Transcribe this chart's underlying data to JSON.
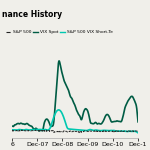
{
  "title": "nance History",
  "background_color": "#f0efea",
  "plot_bg_color": "#f0efea",
  "legend": [
    "S&P 500",
    "VIX Spot",
    "S&P 500 VIX Short-Te"
  ],
  "x_ticks": [
    "6",
    "Dec-07",
    "Dec-08",
    "Dec-09",
    "Dec-10",
    "Dec-1"
  ],
  "x_tick_fontsize": 4.5,
  "grid_color": "#d8d8d0",
  "line_sp500_color": "#222222",
  "line_vix_color": "#005c44",
  "line_vixst_color": "#00c8b0",
  "n_points": 300
}
